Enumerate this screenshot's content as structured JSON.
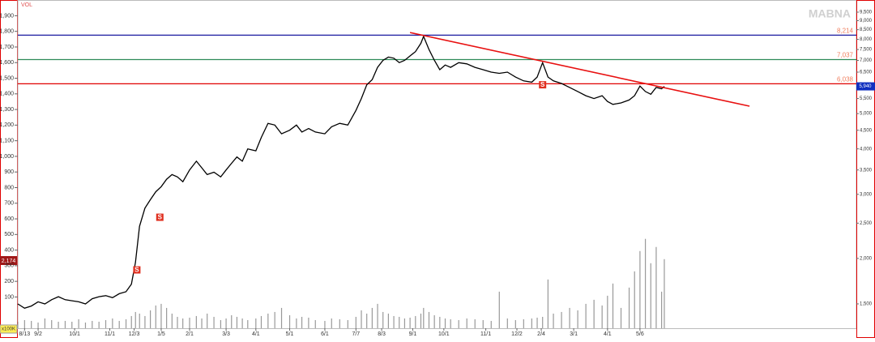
{
  "chart_data": {
    "type": "stock",
    "watermark": "MABNA",
    "volume_label": "VOL",
    "volume_unit": "x100K",
    "left_marker": "2,174",
    "xlim": [
      0,
      620
    ],
    "xticks": [
      {
        "value": 5,
        "label": "8/13"
      },
      {
        "value": 15,
        "label": "9/2"
      },
      {
        "value": 42,
        "label": "10/1"
      },
      {
        "value": 68,
        "label": "11/1"
      },
      {
        "value": 86,
        "label": "12/3"
      },
      {
        "value": 106,
        "label": "1/5"
      },
      {
        "value": 127,
        "label": "2/1"
      },
      {
        "value": 154,
        "label": "3/3"
      },
      {
        "value": 176,
        "label": "4/1"
      },
      {
        "value": 201,
        "label": "5/1"
      },
      {
        "value": 227,
        "label": "6/1"
      },
      {
        "value": 250,
        "label": "7/7"
      },
      {
        "value": 269,
        "label": "8/3"
      },
      {
        "value": 292,
        "label": "9/1"
      },
      {
        "value": 315,
        "label": "10/1"
      },
      {
        "value": 346,
        "label": "11/1"
      },
      {
        "value": 369,
        "label": "12/2"
      },
      {
        "value": 387,
        "label": "2/4"
      },
      {
        "value": 411,
        "label": "3/1"
      },
      {
        "value": 436,
        "label": "4/1"
      },
      {
        "value": 460,
        "label": "5/6"
      }
    ],
    "ylim": [
      -100,
      1980
    ],
    "yticks": [
      100,
      200,
      300,
      400,
      500,
      600,
      700,
      800,
      900,
      {
        "value": 1000,
        "label": "1,000"
      },
      {
        "value": 1100,
        "label": "1,100"
      },
      {
        "value": 1200,
        "label": "1,200"
      },
      {
        "value": 1300,
        "label": "1,300"
      },
      {
        "value": 1400,
        "label": "1,400"
      },
      {
        "value": 1500,
        "label": "1,500"
      },
      {
        "value": 1600,
        "label": "1,600"
      },
      {
        "value": 1700,
        "label": "1,700"
      },
      {
        "value": 1800,
        "label": "1,800"
      },
      {
        "value": 1900,
        "label": "1,900"
      }
    ],
    "y2lim": [
      1286,
      10050
    ],
    "y2_log": true,
    "y2ticks": [
      {
        "value": 1500,
        "label": "1,500"
      },
      {
        "value": 2000,
        "label": "2,000"
      },
      {
        "value": 2500,
        "label": "2,500"
      },
      {
        "value": 3000,
        "label": "3,000"
      },
      {
        "value": 3500,
        "label": "3,500"
      },
      {
        "value": 4000,
        "label": "4,000"
      },
      {
        "value": 4500,
        "label": "4,500"
      },
      {
        "value": 5000,
        "label": "5,000"
      },
      {
        "value": 5500,
        "label": "5,500"
      },
      {
        "value": 6000,
        "label": "6,000"
      },
      {
        "value": 6500,
        "label": "6,500"
      },
      {
        "value": 7000,
        "label": "7,000"
      },
      {
        "value": 7500,
        "label": "7,500"
      },
      {
        "value": 8000,
        "label": "8,000"
      },
      {
        "value": 8500,
        "label": "8,500"
      },
      {
        "value": 9000,
        "label": "9,000"
      },
      {
        "value": 9500,
        "label": "9,500"
      }
    ],
    "vol_ylim": [
      0,
      400
    ],
    "x": [
      0,
      5,
      10,
      15,
      20,
      25,
      30,
      35,
      40,
      45,
      50,
      55,
      60,
      65,
      70,
      75,
      80,
      84,
      87,
      90,
      94,
      98,
      102,
      106,
      110,
      114,
      118,
      122,
      127,
      132,
      136,
      140,
      145,
      150,
      154,
      158,
      162,
      166,
      170,
      176,
      180,
      185,
      190,
      195,
      201,
      206,
      210,
      215,
      220,
      227,
      232,
      238,
      244,
      250,
      254,
      258,
      262,
      266,
      270,
      274,
      278,
      282,
      286,
      290,
      294,
      298,
      300,
      304,
      308,
      312,
      316,
      320,
      326,
      332,
      338,
      344,
      350,
      356,
      362,
      368,
      374,
      380,
      384,
      388,
      392,
      396,
      402,
      408,
      414,
      420,
      426,
      432,
      436,
      440,
      446,
      452,
      456,
      460,
      464,
      468,
      472,
      476,
      478
    ],
    "series": [
      {
        "name": "Price",
        "color": "#000000",
        "axis": "y2",
        "values": [
          1500,
          1460,
          1480,
          1520,
          1500,
          1540,
          1570,
          1540,
          1530,
          1520,
          1500,
          1550,
          1570,
          1580,
          1560,
          1600,
          1620,
          1700,
          1950,
          2450,
          2750,
          2900,
          3050,
          3150,
          3300,
          3400,
          3350,
          3250,
          3500,
          3700,
          3550,
          3400,
          3450,
          3350,
          3500,
          3650,
          3800,
          3700,
          4000,
          3950,
          4300,
          4700,
          4650,
          4400,
          4500,
          4650,
          4450,
          4550,
          4450,
          4400,
          4600,
          4700,
          4650,
          5100,
          5500,
          6000,
          6200,
          6700,
          7000,
          7150,
          7100,
          6900,
          7000,
          7200,
          7400,
          7800,
          8150,
          7500,
          7000,
          6600,
          6800,
          6700,
          6900,
          6850,
          6700,
          6600,
          6500,
          6450,
          6500,
          6300,
          6150,
          6100,
          6300,
          6900,
          6300,
          6150,
          6050,
          5900,
          5750,
          5600,
          5500,
          5600,
          5400,
          5300,
          5350,
          5450,
          5600,
          5950,
          5750,
          5650,
          5900,
          5850,
          5940
        ]
      },
      {
        "name": "Volume",
        "color": "#999999",
        "axis": "vol",
        "values": [
          8,
          10,
          9,
          7,
          12,
          10,
          8,
          9,
          8,
          11,
          7,
          9,
          8,
          10,
          12,
          9,
          11,
          15,
          20,
          18,
          15,
          22,
          28,
          30,
          25,
          18,
          14,
          12,
          13,
          15,
          12,
          18,
          14,
          10,
          12,
          16,
          14,
          12,
          10,
          12,
          15,
          18,
          20,
          25,
          16,
          12,
          14,
          13,
          10,
          9,
          12,
          11,
          10,
          14,
          22,
          18,
          25,
          30,
          20,
          18,
          15,
          14,
          12,
          13,
          15,
          18,
          25,
          20,
          16,
          14,
          12,
          11,
          10,
          12,
          11,
          10,
          9,
          45,
          12,
          10,
          11,
          12,
          13,
          14,
          60,
          18,
          20,
          25,
          22,
          30,
          35,
          28,
          40,
          55,
          25,
          50,
          70,
          95,
          110,
          80,
          100,
          45,
          85
        ]
      }
    ],
    "levels": [
      {
        "value": 8214,
        "label": "8,214",
        "color": "#1a1aa0"
      },
      {
        "value": 7037,
        "label": "7,037",
        "color": "#2e8b57"
      },
      {
        "value": 6038,
        "label": "6,038",
        "color": "#e00000"
      }
    ],
    "last_price": {
      "value": 5940,
      "label": "5,940"
    },
    "trendline": {
      "x": [
        290,
        541
      ],
      "values": [
        8350,
        5240
      ],
      "color": "#e81010"
    },
    "signals": [
      {
        "x": 88,
        "value": 1860,
        "label": "S"
      },
      {
        "x": 105,
        "value": 2595,
        "label": "S"
      },
      {
        "x": 388,
        "value": 6000,
        "label": "S"
      }
    ]
  }
}
